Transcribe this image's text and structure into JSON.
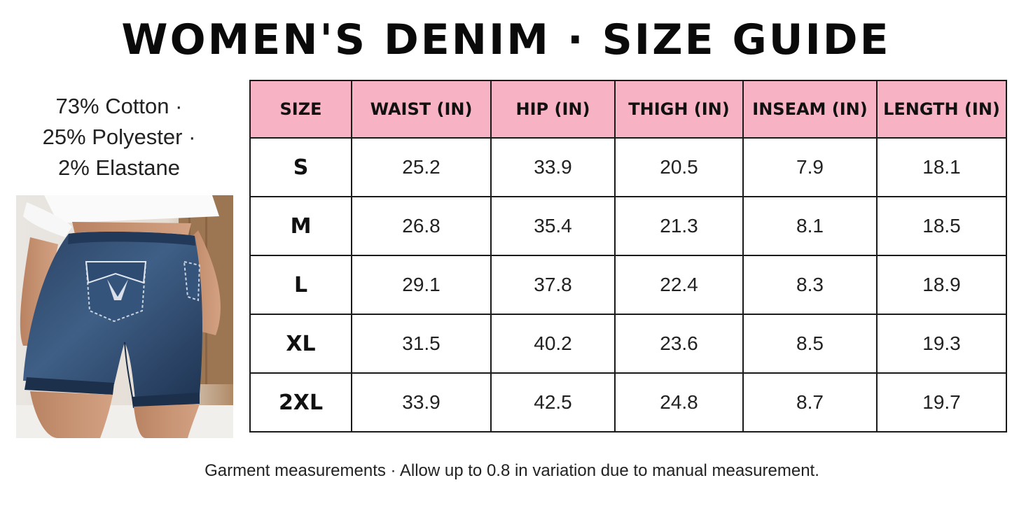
{
  "title": "WOMEN'S DENIM · SIZE GUIDE",
  "material": {
    "lines": [
      "73% Cotton ·",
      "25% Polyester ·",
      "2% Elastane"
    ]
  },
  "table": {
    "headers": [
      "SIZE",
      "WAIST (IN)",
      "HIP (IN)",
      "THIGH (IN)",
      "INSEAM (IN)",
      "LENGTH (IN)"
    ],
    "rows": [
      [
        "S",
        "25.2",
        "33.9",
        "20.5",
        "7.9",
        "18.1"
      ],
      [
        "M",
        "26.8",
        "35.4",
        "21.3",
        "8.1",
        "18.5"
      ],
      [
        "L",
        "29.1",
        "37.8",
        "22.4",
        "8.3",
        "18.9"
      ],
      [
        "XL",
        "31.5",
        "40.2",
        "23.6",
        "8.5",
        "19.3"
      ],
      [
        "2XL",
        "33.9",
        "42.5",
        "24.8",
        "8.7",
        "19.7"
      ]
    ]
  },
  "footnote": "Garment measurements · Allow up to 0.8 in variation due to manual measurement.",
  "colors": {
    "header_bg": "#f7b3c3",
    "denim": "#2b4568"
  }
}
